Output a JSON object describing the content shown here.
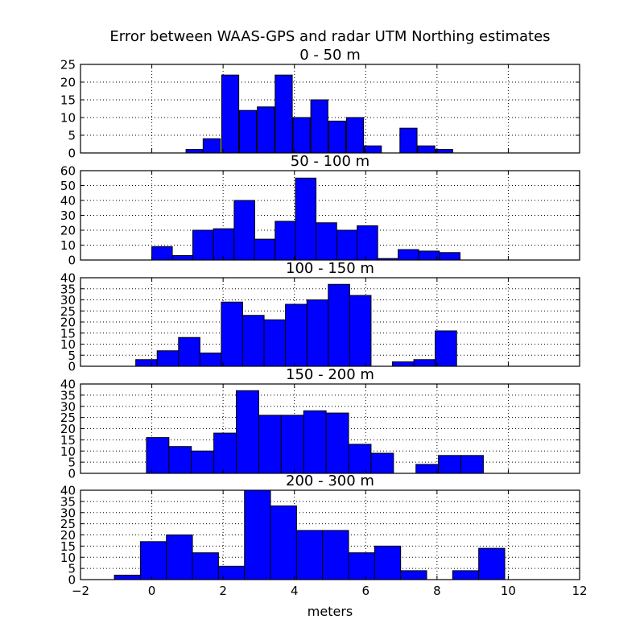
{
  "figure": {
    "title": "Error between WAAS-GPS and radar UTM Northing estimates",
    "xlabel": "meters"
  },
  "colors": {
    "bar_fill": "#0000ff",
    "bar_stroke": "#000000",
    "axis": "#000000",
    "grid": "#000000",
    "background": "#ffffff"
  },
  "x_axis": {
    "range": [
      -2,
      12
    ],
    "ticks": [
      -2,
      0,
      2,
      4,
      6,
      8,
      10,
      12
    ],
    "tick_labels": [
      "−2",
      "0",
      "2",
      "4",
      "6",
      "8",
      "10",
      "12"
    ]
  },
  "chart_data": [
    {
      "type": "bar",
      "title": "0 - 50 m",
      "ylim": [
        0,
        25
      ],
      "yticks": [
        0,
        5,
        10,
        15,
        20,
        25
      ],
      "bin_width": 0.48,
      "bins": [
        {
          "x": 0.96,
          "y": 1
        },
        {
          "x": 1.44,
          "y": 4
        },
        {
          "x": 1.96,
          "y": 22
        },
        {
          "x": 2.46,
          "y": 12
        },
        {
          "x": 2.96,
          "y": 13
        },
        {
          "x": 3.46,
          "y": 22
        },
        {
          "x": 3.96,
          "y": 10
        },
        {
          "x": 4.46,
          "y": 15
        },
        {
          "x": 4.96,
          "y": 9
        },
        {
          "x": 5.46,
          "y": 10
        },
        {
          "x": 5.96,
          "y": 2
        },
        {
          "x": 6.46,
          "y": 0
        },
        {
          "x": 6.96,
          "y": 7
        },
        {
          "x": 7.46,
          "y": 2
        },
        {
          "x": 7.96,
          "y": 1
        }
      ]
    },
    {
      "type": "bar",
      "title": "50 - 100 m",
      "ylim": [
        0,
        60
      ],
      "yticks": [
        0,
        10,
        20,
        30,
        40,
        50,
        60
      ],
      "bin_width": 0.576,
      "bins": [
        {
          "x": 0.0,
          "y": 9
        },
        {
          "x": 0.58,
          "y": 3
        },
        {
          "x": 1.15,
          "y": 20
        },
        {
          "x": 1.73,
          "y": 21
        },
        {
          "x": 2.31,
          "y": 40
        },
        {
          "x": 2.88,
          "y": 14
        },
        {
          "x": 3.46,
          "y": 26
        },
        {
          "x": 4.03,
          "y": 55
        },
        {
          "x": 4.61,
          "y": 25
        },
        {
          "x": 5.19,
          "y": 20
        },
        {
          "x": 5.76,
          "y": 23
        },
        {
          "x": 6.34,
          "y": 1
        },
        {
          "x": 6.91,
          "y": 7
        },
        {
          "x": 7.49,
          "y": 6
        },
        {
          "x": 8.07,
          "y": 5
        }
      ]
    },
    {
      "type": "bar",
      "title": "100 - 150 m",
      "ylim": [
        0,
        40
      ],
      "yticks": [
        0,
        5,
        10,
        15,
        20,
        25,
        30,
        35,
        40
      ],
      "bin_width": 0.6,
      "bins": [
        {
          "x": -0.45,
          "y": 3
        },
        {
          "x": 0.15,
          "y": 7
        },
        {
          "x": 0.75,
          "y": 13
        },
        {
          "x": 1.35,
          "y": 6
        },
        {
          "x": 1.95,
          "y": 29
        },
        {
          "x": 2.55,
          "y": 23
        },
        {
          "x": 3.15,
          "y": 21
        },
        {
          "x": 3.75,
          "y": 28
        },
        {
          "x": 4.35,
          "y": 30
        },
        {
          "x": 4.95,
          "y": 37
        },
        {
          "x": 5.55,
          "y": 32
        },
        {
          "x": 6.15,
          "y": 0
        },
        {
          "x": 6.75,
          "y": 2
        },
        {
          "x": 7.35,
          "y": 3
        },
        {
          "x": 7.95,
          "y": 16
        }
      ]
    },
    {
      "type": "bar",
      "title": "150 - 200 m",
      "ylim": [
        0,
        40
      ],
      "yticks": [
        0,
        5,
        10,
        15,
        20,
        25,
        30,
        35,
        40
      ],
      "bin_width": 0.63,
      "bins": [
        {
          "x": -0.15,
          "y": 16
        },
        {
          "x": 0.48,
          "y": 12
        },
        {
          "x": 1.11,
          "y": 10
        },
        {
          "x": 1.74,
          "y": 18
        },
        {
          "x": 2.37,
          "y": 37
        },
        {
          "x": 3.0,
          "y": 26
        },
        {
          "x": 3.63,
          "y": 26
        },
        {
          "x": 4.26,
          "y": 28
        },
        {
          "x": 4.89,
          "y": 27
        },
        {
          "x": 5.52,
          "y": 13
        },
        {
          "x": 6.15,
          "y": 9
        },
        {
          "x": 6.78,
          "y": 0
        },
        {
          "x": 7.41,
          "y": 4
        },
        {
          "x": 8.04,
          "y": 8
        },
        {
          "x": 8.67,
          "y": 8
        }
      ]
    },
    {
      "type": "bar",
      "title": "200 - 300 m",
      "ylim": [
        0,
        40
      ],
      "yticks": [
        0,
        5,
        10,
        15,
        20,
        25,
        30,
        35,
        40
      ],
      "bin_width": 0.73,
      "bins": [
        {
          "x": -1.05,
          "y": 2
        },
        {
          "x": -0.32,
          "y": 17
        },
        {
          "x": 0.41,
          "y": 20
        },
        {
          "x": 1.14,
          "y": 12
        },
        {
          "x": 1.87,
          "y": 6
        },
        {
          "x": 2.6,
          "y": 40
        },
        {
          "x": 3.33,
          "y": 33
        },
        {
          "x": 4.06,
          "y": 22
        },
        {
          "x": 4.79,
          "y": 22
        },
        {
          "x": 5.52,
          "y": 12
        },
        {
          "x": 6.25,
          "y": 15
        },
        {
          "x": 6.98,
          "y": 4
        },
        {
          "x": 7.71,
          "y": 0
        },
        {
          "x": 8.44,
          "y": 4
        },
        {
          "x": 9.17,
          "y": 14
        }
      ]
    }
  ]
}
